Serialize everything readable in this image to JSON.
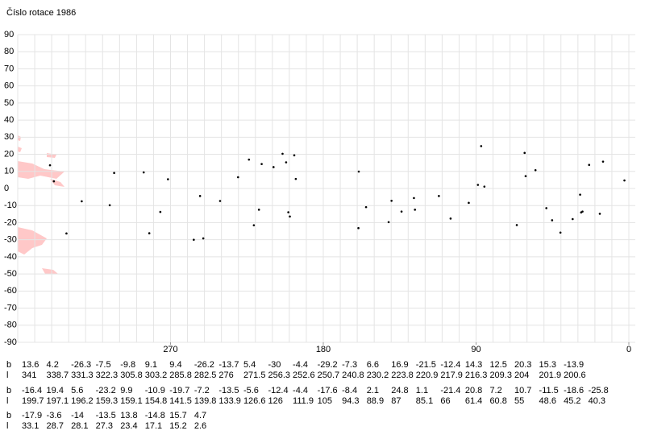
{
  "chart_data": {
    "type": "scatter",
    "title": "Číslo rotace 1986",
    "xlim": [
      360,
      0
    ],
    "ylim": [
      -90,
      90
    ],
    "xticks": [
      270,
      180,
      90,
      0
    ],
    "yticks": [
      90,
      80,
      70,
      60,
      50,
      40,
      30,
      20,
      10,
      0,
      -10,
      -20,
      -30,
      -40,
      -50,
      -60,
      -70,
      -80,
      -90
    ],
    "grid": true,
    "grid_step": 10,
    "color": "#000000",
    "row_labels": [
      "b",
      "l"
    ],
    "groups": [
      {
        "b": [
          13.6,
          4.2,
          -26.3,
          -7.5,
          -9.8,
          9.1,
          9.4,
          -26.2,
          -13.7,
          5.4,
          -30.0,
          -4.4,
          -29.2,
          -7.3,
          6.6,
          16.9,
          -21.5,
          -12.4,
          14.3,
          12.5,
          20.3,
          15.3,
          -13.9
        ],
        "l": [
          341.0,
          338.7,
          331.3,
          322.3,
          305.8,
          303.2,
          285.8,
          282.5,
          276.0,
          271.5,
          256.3,
          252.6,
          250.7,
          240.8,
          230.2,
          223.8,
          220.9,
          217.9,
          216.3,
          209.3,
          204.0,
          201.9,
          200.6
        ]
      },
      {
        "b": [
          -16.4,
          19.4,
          5.6,
          -23.2,
          9.9,
          -10.9,
          -19.7,
          -7.2,
          -13.5,
          -5.6,
          -12.4,
          -4.4,
          -17.6,
          -8.4,
          2.1,
          24.8,
          1.1,
          -21.4,
          20.8,
          7.2,
          10.7,
          -11.5,
          -18.6,
          -25.8
        ],
        "l": [
          199.7,
          197.1,
          196.2,
          159.3,
          159.1,
          154.8,
          141.5,
          139.8,
          133.9,
          126.6,
          126.0,
          111.9,
          105.0,
          94.3,
          88.9,
          87.0,
          85.1,
          66.0,
          61.4,
          60.8,
          55.0,
          48.6,
          45.2,
          40.3
        ]
      },
      {
        "b": [
          -17.9,
          -3.6,
          -14.0,
          -13.5,
          13.8,
          -14.8,
          15.7,
          4.7
        ],
        "l": [
          33.1,
          28.7,
          28.1,
          27.3,
          23.4,
          17.1,
          15.2,
          2.6
        ]
      }
    ]
  }
}
